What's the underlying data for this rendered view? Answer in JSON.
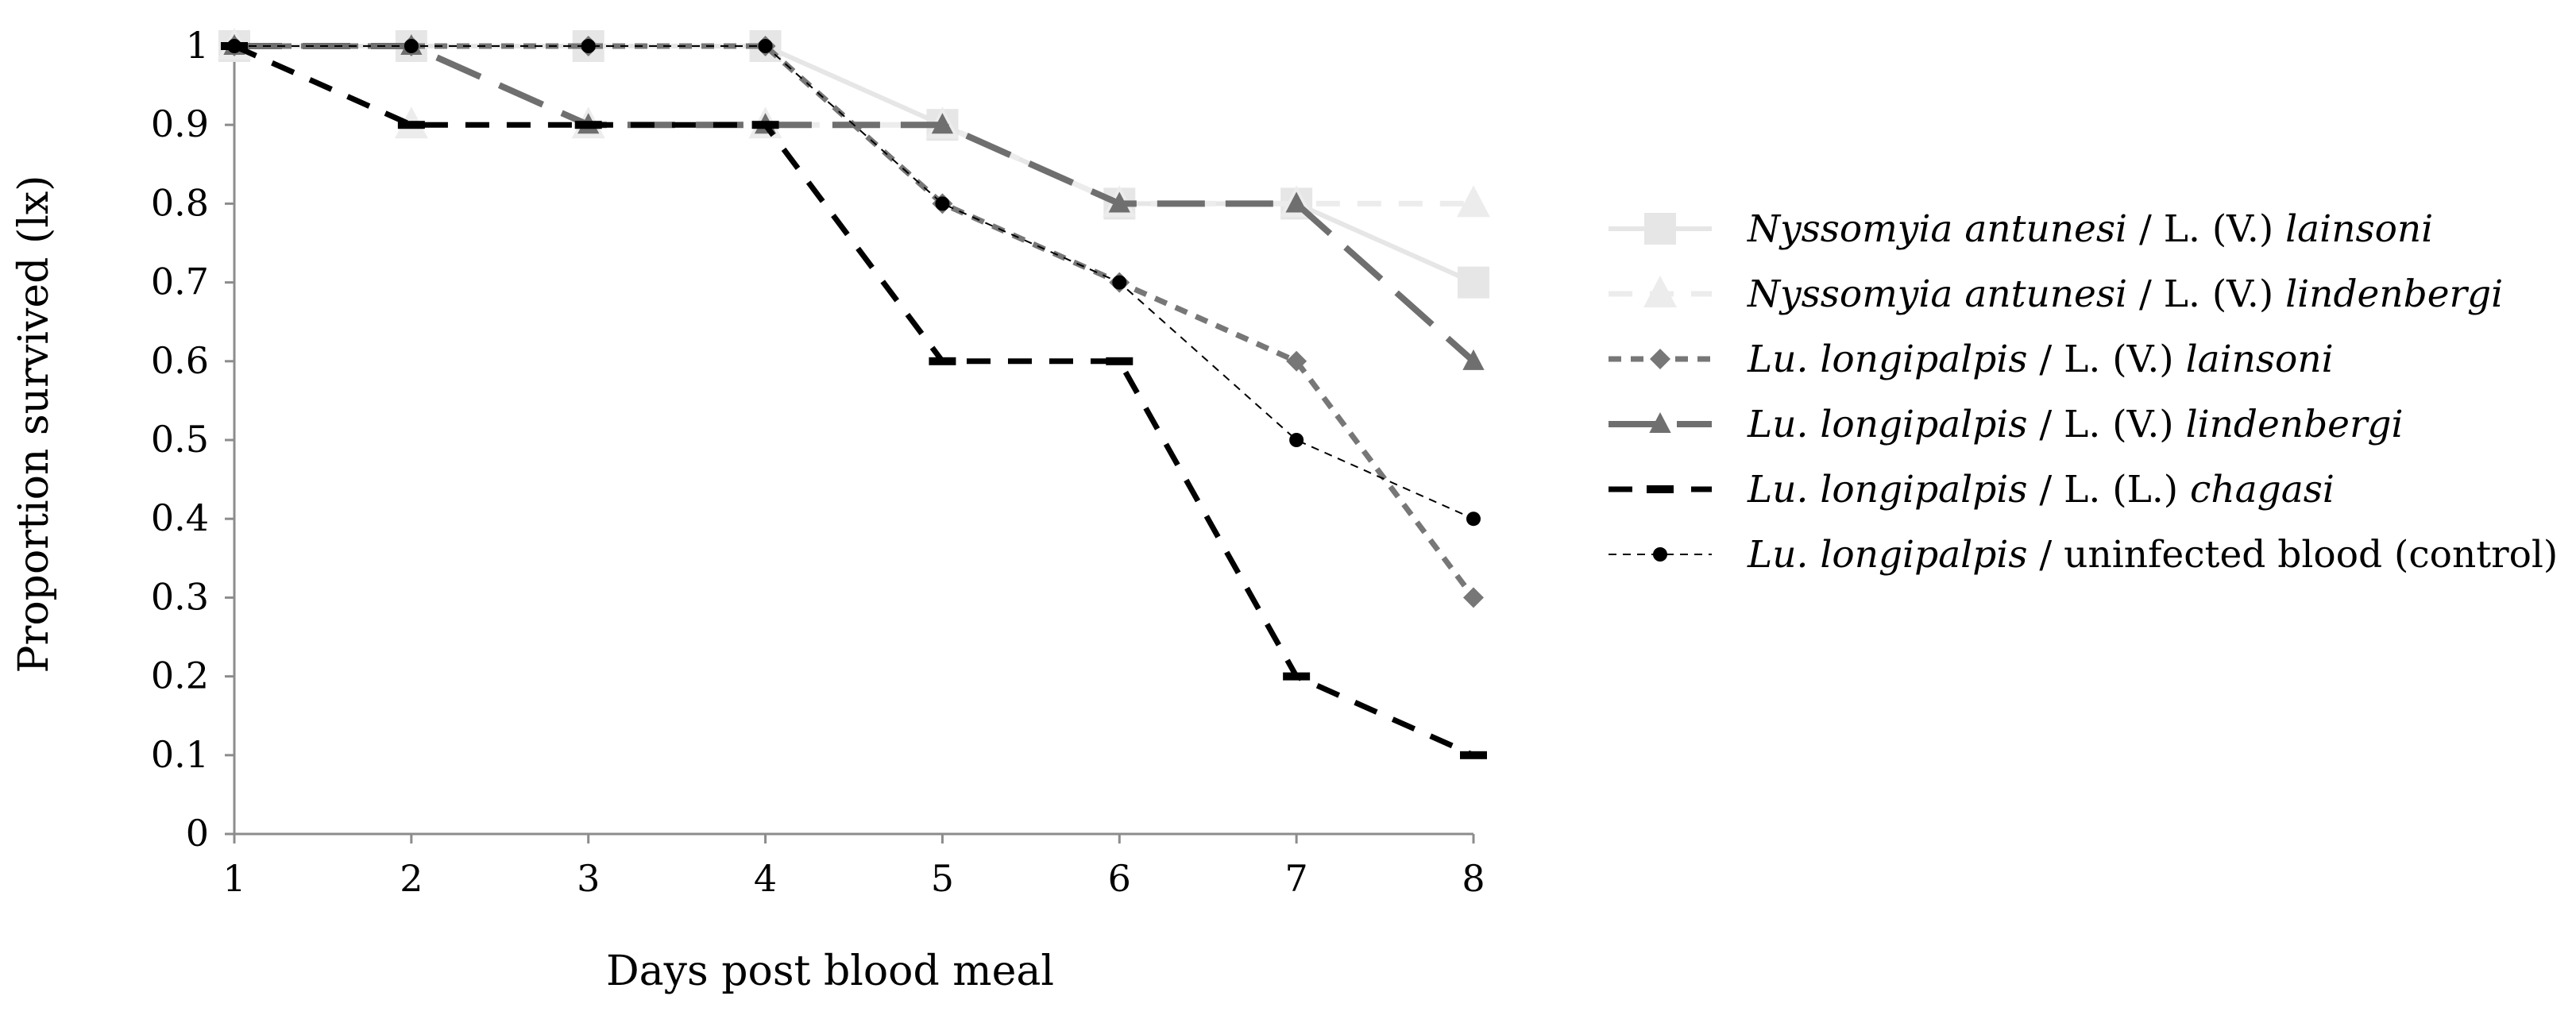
{
  "chart_data": {
    "type": "line",
    "title": "",
    "xlabel": "Days post blood meal",
    "ylabel": "Proportion survived (lx)",
    "x": [
      1,
      2,
      3,
      4,
      5,
      6,
      7,
      8
    ],
    "xlim": [
      1,
      8
    ],
    "ylim": [
      0,
      1
    ],
    "x_ticks": [
      "1",
      "2",
      "3",
      "4",
      "5",
      "6",
      "7",
      "8"
    ],
    "y_ticks": [
      "0",
      "0.1",
      "0.2",
      "0.3",
      "0.4",
      "0.5",
      "0.6",
      "0.7",
      "0.8",
      "0.9",
      "1"
    ],
    "grid": false,
    "legend_position": "right",
    "series": [
      {
        "name": "Nyssomyia antunesi / L. (V.) lainsoni",
        "legend_italic": "Nyssomyia antunesi",
        "legend_rest": " / L. (V.) ",
        "legend_italic2": "lainsoni",
        "values": [
          1,
          1,
          1,
          1,
          0.9,
          0.8,
          0.8,
          0.7
        ],
        "color": "#e6e6e6",
        "marker": "square",
        "dash": "solid"
      },
      {
        "name": "Nyssomyia antunesi / L. (V.) lindenbergi",
        "legend_italic": "Nyssomyia antunesi",
        "legend_rest": " / L. (V.) ",
        "legend_italic2": "lindenbergi",
        "values": [
          1,
          0.9,
          0.9,
          0.9,
          0.9,
          0.8,
          0.8,
          0.8
        ],
        "color": "#ececec",
        "marker": "triangle",
        "dash": "dashed"
      },
      {
        "name": "Lu. longipalpis / L. (V.) lainsoni",
        "legend_italic": "Lu. longipalpis",
        "legend_rest": " / L. (V.) ",
        "legend_italic2": "lainsoni",
        "values": [
          1,
          1,
          1,
          1,
          0.8,
          0.7,
          0.6,
          0.3
        ],
        "color": "#777777",
        "marker": "diamond",
        "dash": "short-dash"
      },
      {
        "name": "Lu. longipalpis / L. (V.) lindenbergi",
        "legend_italic": "Lu. longipalpis",
        "legend_rest": " / L. (V.) ",
        "legend_italic2": "lindenbergi",
        "values": [
          1,
          1,
          0.9,
          0.9,
          0.9,
          0.8,
          0.8,
          0.6
        ],
        "color": "#6f6f6f",
        "marker": "triangle",
        "dash": "long-dash"
      },
      {
        "name": "Lu. longipalpis / L. (L.) chagasi",
        "legend_italic": "Lu. longipalpis",
        "legend_rest": " / L. (L.) ",
        "legend_italic2": "chagasi",
        "values": [
          1,
          0.9,
          0.9,
          0.9,
          0.6,
          0.6,
          0.2,
          0.1
        ],
        "color": "#000000",
        "marker": "dash",
        "dash": "dashed"
      },
      {
        "name": "Lu. longipalpis / uninfected blood (control)",
        "legend_italic": "Lu. longipalpis",
        "legend_rest": " / uninfected blood (control)",
        "legend_italic2": "",
        "values": [
          1,
          1,
          1,
          1,
          0.8,
          0.7,
          0.5,
          0.4
        ],
        "color": "#000000",
        "marker": "circle",
        "dash": "thin-dash"
      }
    ]
  }
}
